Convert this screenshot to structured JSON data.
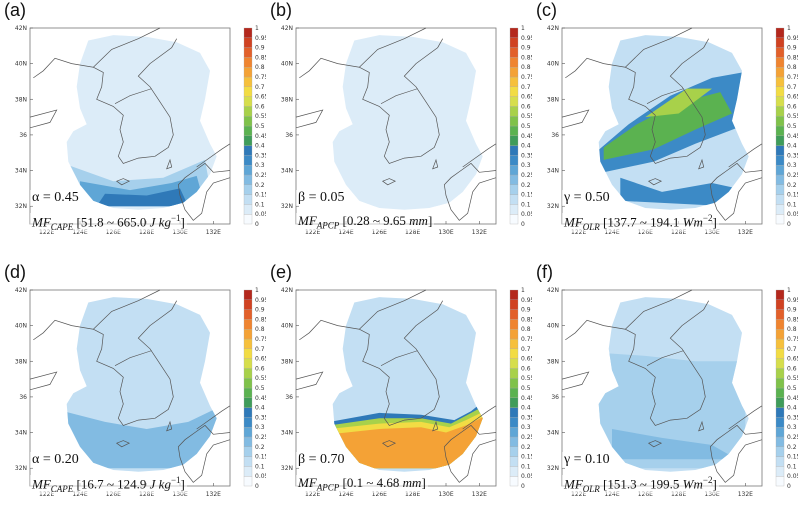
{
  "colorbar": {
    "ticks": [
      "0",
      "0.05",
      "0.1",
      "0.15",
      "0.2",
      "0.25",
      "0.3",
      "0.35",
      "0.4",
      "0.45",
      "0.5",
      "0.55",
      "0.6",
      "0.65",
      "0.7",
      "0.75",
      "0.8",
      "0.85",
      "0.9",
      "0.95",
      "1"
    ],
    "colors": [
      "#f7fbff",
      "#dcecf8",
      "#c3dff3",
      "#a6d0ec",
      "#82bbe2",
      "#5fa6d6",
      "#3c8ac6",
      "#2f79b8",
      "#3f9c5a",
      "#5bb250",
      "#7fc24a",
      "#a8d14a",
      "#d6de4c",
      "#f2dc44",
      "#f6c03c",
      "#f4a236",
      "#ef8430",
      "#e2602a",
      "#d04222",
      "#b4281d"
    ]
  },
  "lat_labels": [
    "42N",
    "40N",
    "38N",
    "36",
    "34N",
    "32N"
  ],
  "lon_labels": [
    "122E",
    "124E",
    "126E",
    "128E",
    "130E",
    "132E"
  ],
  "panels": [
    {
      "letter": "(a)",
      "sym": "α",
      "value": "0.45",
      "mf_sub": "CAPE",
      "range": "[51.8 ~ 665.0 ",
      "unit_html": "J kg",
      "unit_exp": "−1",
      "end": "]",
      "field": "cape_a",
      "fill_level": 0.05,
      "hot_level": 0.3
    },
    {
      "letter": "(b)",
      "sym": "β",
      "value": "0.05",
      "mf_sub": "APCP",
      "range": "[0.28 ~ 9.65 ",
      "unit_html": "mm",
      "unit_exp": "",
      "end": "]",
      "field": "apcp_b",
      "fill_level": 0.05,
      "hot_level": 0.1
    },
    {
      "letter": "(c)",
      "sym": "γ",
      "value": "0.50",
      "mf_sub": "OLR",
      "range": "[137.7 ~ 194.1 ",
      "unit_html": "Wm",
      "unit_exp": "−2",
      "end": "]",
      "field": "olr_c",
      "fill_level": 0.1,
      "hot_level": 0.45
    },
    {
      "letter": "(d)",
      "sym": "α",
      "value": "0.20",
      "mf_sub": "CAPE",
      "range": "[16.7 ~ 124.9 ",
      "unit_html": "J kg",
      "unit_exp": "−1",
      "end": "]",
      "field": "cape_d",
      "fill_level": 0.1,
      "hot_level": 0.2
    },
    {
      "letter": "(e)",
      "sym": "β",
      "value": "0.70",
      "mf_sub": "APCP",
      "range": "[0.1 ~ 4.68 ",
      "unit_html": "mm",
      "unit_exp": "",
      "end": "]",
      "field": "apcp_e",
      "fill_level": 0.1,
      "hot_level": 0.75
    },
    {
      "letter": "(f)",
      "sym": "γ",
      "value": "0.10",
      "mf_sub": "OLR",
      "range": "[151.3 ~ 199.5 ",
      "unit_html": "Wm",
      "unit_exp": "−2",
      "end": "]",
      "field": "olr_f",
      "fill_level": 0.1,
      "hot_level": 0.15
    }
  ]
}
